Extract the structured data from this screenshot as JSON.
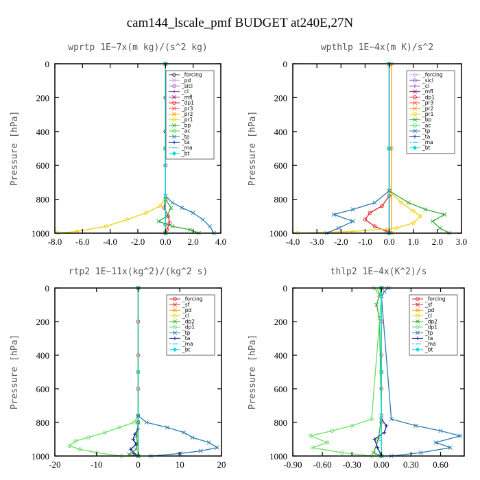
{
  "figure_title": "cam144_lscale_pmf  BUDGET at240E,27N",
  "chart_data": [
    {
      "type": "line",
      "title": "wprtp   1E−7x(m kg)/(s^2 kg)",
      "ylabel": "Pressure [hPa]",
      "ylim": [
        1000,
        0
      ],
      "xlim": [
        -8,
        4
      ],
      "xticks": [
        -8,
        -6,
        -4,
        -2,
        0,
        2,
        4
      ],
      "xtick_labels": [
        "-8.0",
        "-6.0",
        "-4.0",
        "-2.0",
        "0.0",
        "2.0",
        "4.0"
      ],
      "yticks": [
        0,
        200,
        400,
        600,
        800,
        1000
      ],
      "legend": "top-right",
      "series": [
        {
          "name": "_forcing",
          "color": "#333333",
          "marker": "o",
          "x": [
            0,
            0,
            0,
            0,
            0,
            0,
            0
          ],
          "y": [
            0,
            200,
            400,
            600,
            800,
            950,
            1000
          ]
        },
        {
          "name": "_pd",
          "color": "#c8a0d8",
          "marker": "x",
          "x": [
            0,
            0,
            0
          ],
          "y": [
            0,
            500,
            1000
          ]
        },
        {
          "name": "_sicl",
          "color": "#9b59d0",
          "marker": "o",
          "x": [
            0,
            0,
            0
          ],
          "y": [
            0,
            500,
            1000
          ]
        },
        {
          "name": "_cl",
          "color": "#7b3fa0",
          "marker": "+",
          "x": [
            0,
            0,
            0
          ],
          "y": [
            0,
            500,
            1000
          ]
        },
        {
          "name": "_mfl",
          "color": "#a02070",
          "marker": "x",
          "x": [
            0,
            0,
            0
          ],
          "y": [
            0,
            500,
            1000
          ]
        },
        {
          "name": "_dp1",
          "color": "#e02020",
          "marker": "o",
          "x": [
            0,
            0,
            -0.1,
            0.2,
            0.3,
            0.1,
            0
          ],
          "y": [
            0,
            800,
            850,
            900,
            940,
            980,
            1000
          ]
        },
        {
          "name": "_pr3",
          "color": "#ff5555",
          "marker": "x",
          "x": [
            0,
            0,
            0
          ],
          "y": [
            0,
            500,
            1000
          ]
        },
        {
          "name": "_pr2",
          "color": "#ff9900",
          "marker": "x",
          "x": [
            0,
            0,
            0
          ],
          "y": [
            0,
            500,
            1000
          ]
        },
        {
          "name": "_pr1",
          "color": "#f0d000",
          "marker": "o",
          "x": [
            0,
            -0.4,
            -1.4,
            -2.8,
            -4.3,
            -6.4,
            -7.8
          ],
          "y": [
            800,
            840,
            880,
            920,
            960,
            990,
            1000
          ]
        },
        {
          "name": "_bp",
          "color": "#33aa33",
          "marker": "x",
          "x": [
            0,
            0.4,
            0.1,
            -0.5,
            0.5,
            1.8,
            2.4
          ],
          "y": [
            800,
            850,
            900,
            930,
            960,
            980,
            1000
          ]
        },
        {
          "name": "_ac",
          "color": "#44dd44",
          "marker": "o",
          "x": [
            0,
            0,
            0
          ],
          "y": [
            0,
            500,
            1000
          ]
        },
        {
          "name": "_tp",
          "color": "#2a7ab0",
          "marker": "x",
          "x": [
            0,
            0.5,
            1.2,
            2.0,
            2.7,
            3.2,
            3.5
          ],
          "y": [
            780,
            820,
            850,
            880,
            920,
            960,
            1000
          ]
        },
        {
          "name": "_ta",
          "color": "#1a1aa0",
          "marker": "+",
          "x": [
            0,
            0,
            0
          ],
          "y": [
            0,
            500,
            1000
          ]
        },
        {
          "name": "_ma",
          "color": "#20b0e0",
          "marker": "-",
          "x": [
            0,
            0,
            0
          ],
          "y": [
            0,
            500,
            1000
          ]
        },
        {
          "name": "_bt",
          "color": "#00dddd",
          "marker": "D",
          "x": [
            0,
            0,
            0
          ],
          "y": [
            0,
            500,
            1000
          ]
        }
      ]
    },
    {
      "type": "line",
      "title": "wpthlp   1E−4x(m K)/s^2",
      "ylabel": "Pressure [hPa]",
      "ylim": [
        1000,
        0
      ],
      "xlim": [
        -4,
        3
      ],
      "xticks": [
        -4,
        -3,
        -2,
        -1,
        0,
        1,
        2,
        3
      ],
      "xtick_labels": [
        "-4.0",
        "-3.0",
        "-2.0",
        "-1.0",
        "0.0",
        "1.0",
        "2.0",
        "3.0"
      ],
      "yticks": [
        0,
        200,
        400,
        600,
        800,
        1000
      ],
      "legend": "top-right",
      "series": [
        {
          "name": "_forcing",
          "color": "#c8a0d8",
          "marker": "o",
          "x": [
            0,
            0,
            0
          ],
          "y": [
            0,
            500,
            1000
          ]
        },
        {
          "name": "_sicl",
          "color": "#9b59d0",
          "marker": "o",
          "x": [
            0,
            0,
            0
          ],
          "y": [
            0,
            500,
            1000
          ]
        },
        {
          "name": "_cl",
          "color": "#7b3fa0",
          "marker": "+",
          "x": [
            0,
            0,
            0
          ],
          "y": [
            0,
            500,
            1000
          ]
        },
        {
          "name": "_mfl",
          "color": "#a02070",
          "marker": "x",
          "x": [
            0,
            0,
            0
          ],
          "y": [
            0,
            500,
            1000
          ]
        },
        {
          "name": "_dp1",
          "color": "#e02020",
          "marker": "o",
          "x": [
            0,
            -0.3,
            -0.8,
            -1.0,
            -0.6,
            -0.1,
            0
          ],
          "y": [
            780,
            840,
            880,
            920,
            960,
            990,
            1000
          ]
        },
        {
          "name": "_pr3",
          "color": "#ff5555",
          "marker": "x",
          "x": [
            0,
            0,
            0
          ],
          "y": [
            0,
            500,
            1000
          ]
        },
        {
          "name": "_pr2",
          "color": "#ff9900",
          "marker": "x",
          "x": [
            0.1,
            0.1,
            0.1
          ],
          "y": [
            0,
            500,
            1000
          ]
        },
        {
          "name": "_pr1",
          "color": "#f0d000",
          "marker": "o",
          "x": [
            0,
            0.5,
            1.0,
            1.3,
            1.0,
            0.3,
            -1.5,
            -3.8
          ],
          "y": [
            750,
            820,
            870,
            900,
            940,
            970,
            990,
            1000
          ]
        },
        {
          "name": "_bp",
          "color": "#33aa33",
          "marker": "x",
          "x": [
            0,
            0.8,
            1.5,
            2.3,
            1.8,
            2.1,
            2.5
          ],
          "y": [
            750,
            820,
            860,
            890,
            930,
            970,
            1000
          ]
        },
        {
          "name": "_ac",
          "color": "#44dd44",
          "marker": "o",
          "x": [
            0,
            0,
            0
          ],
          "y": [
            0,
            500,
            1000
          ]
        },
        {
          "name": "_tp",
          "color": "#2a7ab0",
          "marker": "x",
          "x": [
            0,
            -0.6,
            -1.5,
            -2.3,
            -1.5,
            -2.1,
            -2.6
          ],
          "y": [
            750,
            820,
            860,
            890,
            930,
            970,
            1000
          ]
        },
        {
          "name": "_ta",
          "color": "#1a1aa0",
          "marker": "+",
          "x": [
            0,
            0,
            0
          ],
          "y": [
            0,
            500,
            1000
          ]
        },
        {
          "name": "_ma",
          "color": "#20b0e0",
          "marker": "-",
          "x": [
            0,
            0,
            0
          ],
          "y": [
            0,
            500,
            1000
          ]
        },
        {
          "name": "_bt",
          "color": "#00dddd",
          "marker": "D",
          "x": [
            0,
            0,
            0
          ],
          "y": [
            0,
            500,
            1000
          ]
        }
      ]
    },
    {
      "type": "line",
      "title": "rtp2   1E−11x(kg^2)/(kg^2 s)",
      "ylabel": "Pressure [hPa]",
      "ylim": [
        1000,
        0
      ],
      "xlim": [
        -20,
        20
      ],
      "xticks": [
        -20,
        -10,
        0,
        10,
        20
      ],
      "xtick_labels": [
        "-20",
        "-10",
        "0",
        "10",
        "20"
      ],
      "yticks": [
        0,
        200,
        400,
        600,
        800,
        1000
      ],
      "legend": "top-right",
      "series": [
        {
          "name": "_forcing",
          "color": "#d82020",
          "marker": "o",
          "x": [
            0,
            0,
            0,
            0,
            0,
            0
          ],
          "y": [
            0,
            200,
            400,
            600,
            800,
            1000
          ]
        },
        {
          "name": "_sf",
          "color": "#e03030",
          "marker": "x",
          "x": [
            0,
            0,
            0
          ],
          "y": [
            0,
            500,
            1000
          ]
        },
        {
          "name": "_pd",
          "color": "#ff9900",
          "marker": "x",
          "x": [
            0,
            0,
            0
          ],
          "y": [
            0,
            500,
            1000
          ]
        },
        {
          "name": "_cl",
          "color": "#f0d000",
          "marker": "o",
          "x": [
            0,
            0,
            0
          ],
          "y": [
            0,
            500,
            1000
          ]
        },
        {
          "name": "_dp2",
          "color": "#33aa33",
          "marker": "x",
          "x": [
            0,
            0,
            -0.4,
            -0.2,
            -0.5,
            -2.2,
            0
          ],
          "y": [
            0,
            800,
            880,
            930,
            960,
            990,
            1000
          ]
        },
        {
          "name": "_dp1",
          "color": "#66e066",
          "marker": "o",
          "x": [
            0,
            -1.0,
            -4.5,
            -8.0,
            -12.0,
            -15.0,
            -16.5,
            -14.0,
            -10.0,
            -4.0
          ],
          "y": [
            760,
            800,
            830,
            860,
            890,
            910,
            940,
            960,
            980,
            1000
          ]
        },
        {
          "name": "_tp",
          "color": "#2a7ab0",
          "marker": "x",
          "x": [
            0,
            2.0,
            7.0,
            11.0,
            13.0,
            17.0,
            19.0,
            15.0,
            10.0,
            3.0
          ],
          "y": [
            760,
            800,
            830,
            860,
            890,
            920,
            950,
            970,
            985,
            1000
          ]
        },
        {
          "name": "_ta",
          "color": "#1a1aa0",
          "marker": "+",
          "x": [
            0,
            0,
            -0.8,
            -1.2,
            -0.5,
            -1.8,
            -1.0,
            0
          ],
          "y": [
            760,
            840,
            870,
            900,
            930,
            960,
            985,
            1000
          ]
        },
        {
          "name": "_ma",
          "color": "#20b0e0",
          "marker": "-",
          "x": [
            0,
            0,
            0
          ],
          "y": [
            0,
            500,
            1000
          ]
        },
        {
          "name": "_bt",
          "color": "#00dddd",
          "marker": "D",
          "x": [
            0,
            0,
            0
          ],
          "y": [
            0,
            500,
            1000
          ]
        }
      ]
    },
    {
      "type": "line",
      "title": "thlp2   1E−4x(K^2)/s",
      "ylabel": "Pressure [hPa]",
      "ylim": [
        1000,
        0
      ],
      "xlim": [
        -0.9,
        0.84
      ],
      "xticks": [
        -0.9,
        -0.6,
        -0.3,
        0.0,
        0.3,
        0.6
      ],
      "xtick_labels": [
        "-0.90",
        "-0.60",
        "-0.30",
        "0.00",
        "0.30",
        "0.60"
      ],
      "yticks": [
        0,
        200,
        400,
        600,
        800,
        1000
      ],
      "legend": "top-right",
      "series": [
        {
          "name": "_forcing",
          "color": "#d82020",
          "marker": "o",
          "x": [
            0,
            0,
            0,
            0,
            0,
            0
          ],
          "y": [
            0,
            200,
            400,
            600,
            800,
            1000
          ]
        },
        {
          "name": "_sf",
          "color": "#e03030",
          "marker": "x",
          "x": [
            0,
            0,
            0
          ],
          "y": [
            0,
            500,
            1000
          ]
        },
        {
          "name": "_pd",
          "color": "#ff9900",
          "marker": "x",
          "x": [
            0,
            0,
            0
          ],
          "y": [
            0,
            500,
            1000
          ]
        },
        {
          "name": "_cl",
          "color": "#f0d000",
          "marker": "o",
          "x": [
            0,
            0,
            0
          ],
          "y": [
            0,
            500,
            1000
          ]
        },
        {
          "name": "_dp2",
          "color": "#33aa33",
          "marker": "x",
          "x": [
            0,
            -0.02,
            -0.05,
            -0.02,
            0,
            -0.03,
            -0.08,
            0
          ],
          "y": [
            0,
            40,
            100,
            180,
            760,
            900,
            980,
            1000
          ]
        },
        {
          "name": "_dp1",
          "color": "#66e066",
          "marker": "o",
          "x": [
            -0.08,
            -0.04,
            0,
            -0.1,
            -0.3,
            -0.5,
            -0.72,
            -0.55,
            -0.7,
            -0.4,
            -0.1
          ],
          "y": [
            0,
            20,
            50,
            780,
            820,
            850,
            880,
            920,
            950,
            980,
            1000
          ]
        },
        {
          "name": "_tp",
          "color": "#2a7ab0",
          "marker": "x",
          "x": [
            0.07,
            0.03,
            0,
            0.1,
            0.35,
            0.6,
            0.8,
            0.55,
            0.7,
            0.4,
            0.1
          ],
          "y": [
            0,
            20,
            50,
            780,
            820,
            850,
            880,
            920,
            950,
            980,
            1000
          ]
        },
        {
          "name": "_ta",
          "color": "#1a1aa0",
          "marker": "+",
          "x": [
            0,
            0.05,
            0.03,
            -0.07,
            -0.04,
            0
          ],
          "y": [
            780,
            820,
            860,
            900,
            950,
            1000
          ]
        },
        {
          "name": "_ma",
          "color": "#20b0e0",
          "marker": "-",
          "x": [
            0,
            0,
            0
          ],
          "y": [
            0,
            500,
            1000
          ]
        },
        {
          "name": "_bt",
          "color": "#00dddd",
          "marker": "D",
          "x": [
            0,
            0,
            0
          ],
          "y": [
            0,
            500,
            1000
          ]
        }
      ]
    }
  ]
}
